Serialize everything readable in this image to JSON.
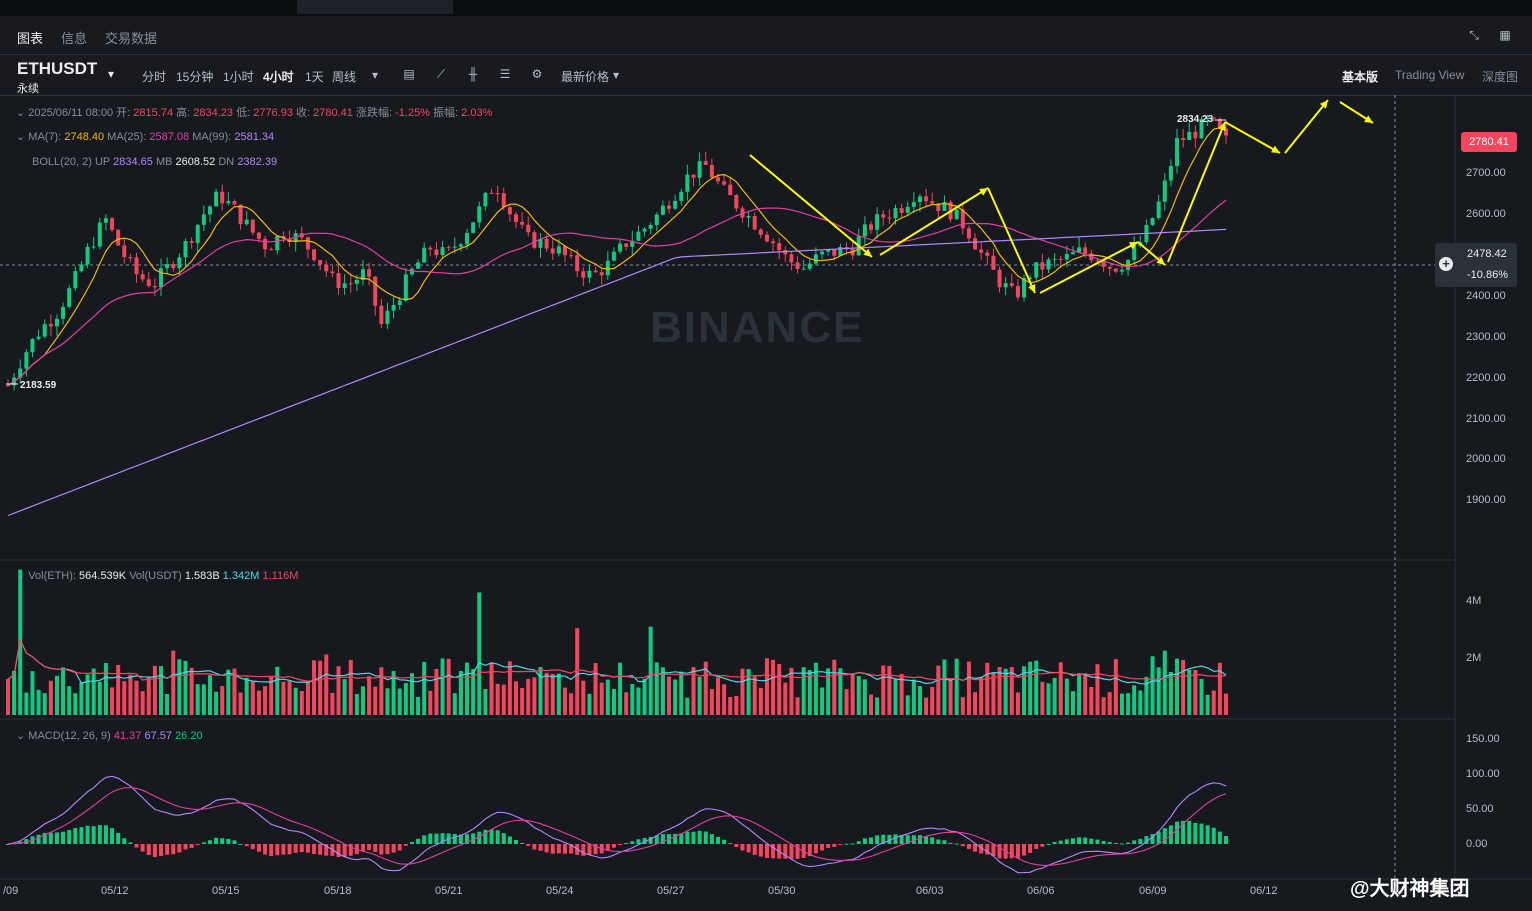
{
  "tabs": [
    "图表",
    "信息",
    "交易数据"
  ],
  "symbol": {
    "name": "ETHUSDT",
    "sub": "永续"
  },
  "intervals": [
    "分时",
    "15分钟",
    "1小时",
    "4小时",
    "1天",
    "周线"
  ],
  "price_type": "最新价格",
  "views": [
    "基本版",
    "Trading View",
    "深度图"
  ],
  "ohlc": {
    "date": "2025/06/11 08:00",
    "open_label": "开:",
    "open": "2815.74",
    "high_label": "高:",
    "high": "2834.23",
    "low_label": "低:",
    "low": "2776.93",
    "close_label": "收:",
    "close": "2780.41",
    "change_label": "涨跌幅:",
    "change": "-1.25%",
    "amp_label": "振幅:",
    "amp": "2.03%"
  },
  "ma": {
    "ma7_label": "MA(7):",
    "ma7": "2748.40",
    "ma25_label": "MA(25):",
    "ma25": "2587.08",
    "ma99_label": "MA(99):",
    "ma99": "2581.34"
  },
  "boll": {
    "label": "BOLL(20, 2)",
    "up_label": "UP",
    "up": "2834.65",
    "mb_label": "MB",
    "mb": "2608.52",
    "dn_label": "DN",
    "dn": "2382.39"
  },
  "price_axis": [
    "2700.00",
    "2600.00",
    "2500.00",
    "2400.00",
    "2300.00",
    "2200.00",
    "2100.00",
    "2000.00",
    "1900.00"
  ],
  "last_price": "2780.41",
  "crosshair": {
    "price": "2478.42",
    "pct": "-10.86%"
  },
  "high_marker": "2834.23",
  "low_marker": "2183.59",
  "watermark": "BINANCE",
  "volume": {
    "eth_label": "Vol(ETH):",
    "eth": "564.539K",
    "usdt_label": "Vol(USDT)",
    "usdt": "1.583B",
    "ma1": "1.342M",
    "ma2": "1.116M",
    "axis": [
      "4M",
      "2M"
    ]
  },
  "macd": {
    "label": "MACD(12, 26, 9)",
    "v1": "41.37",
    "v2": "67.57",
    "v3": "26.20",
    "axis": [
      "150.00",
      "100.00",
      "50.00",
      "0.00"
    ]
  },
  "time_axis": [
    "/09",
    "05/12",
    "05/15",
    "05/18",
    "05/21",
    "05/24",
    "05/27",
    "05/30",
    "06/03",
    "06/06",
    "06/09",
    "06/12"
  ],
  "footer_watermark": "@大财神集团",
  "colors": {
    "up": "#0ecb81",
    "down": "#f6465d",
    "ma7": "#f0b90b",
    "ma25": "#e040a0",
    "ma99": "#b388ff",
    "arrow": "#ffff00",
    "vol_ma1": "#4fd8e8",
    "vol_ma2": "#f6465d"
  },
  "chart_data": {
    "type": "candlestick",
    "ylim": [
      1850,
      2900
    ],
    "x_range": [
      "05/09",
      "06/12"
    ],
    "close_path": [
      2183.59,
      2260,
      2320,
      2360,
      2430,
      2520,
      2590,
      2510,
      2450,
      2430,
      2480,
      2530,
      2600,
      2650,
      2610,
      2560,
      2520,
      2560,
      2540,
      2500,
      2440,
      2430,
      2460,
      2330,
      2400,
      2470,
      2520,
      2500,
      2550,
      2610,
      2680,
      2600,
      2540,
      2530,
      2510,
      2470,
      2450,
      2480,
      2530,
      2560,
      2600,
      2650,
      2700,
      2720,
      2660,
      2620,
      2580,
      2540,
      2490,
      2470,
      2500,
      2510,
      2520,
      2570,
      2600,
      2620,
      2660,
      2630,
      2610,
      2570,
      2500,
      2440,
      2400,
      2460,
      2480,
      2490,
      2510,
      2500,
      2470,
      2490,
      2550,
      2640,
      2780,
      2800,
      2830,
      2780.41
    ]
  }
}
